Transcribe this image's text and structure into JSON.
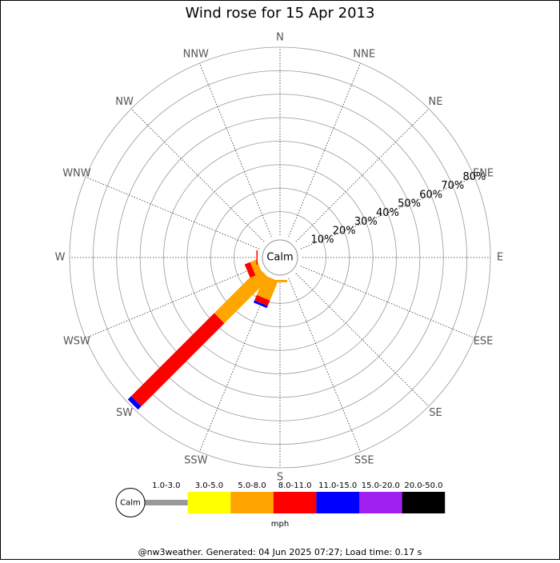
{
  "chart_data": {
    "type": "windrose",
    "title": "Wind rose for 15 Apr 2013",
    "directions": [
      "N",
      "NNE",
      "NE",
      "ENE",
      "E",
      "ESE",
      "SE",
      "SSE",
      "S",
      "SSW",
      "SW",
      "WSW",
      "W",
      "WNW",
      "NW",
      "NNW"
    ],
    "center_label": "Calm",
    "rlim": [
      0,
      80
    ],
    "rticks": [
      {
        "value": 10,
        "label": "10%"
      },
      {
        "value": 20,
        "label": "20%"
      },
      {
        "value": 30,
        "label": "30%"
      },
      {
        "value": 40,
        "label": "40%"
      },
      {
        "value": 50,
        "label": "50%"
      },
      {
        "value": 60,
        "label": "60%"
      },
      {
        "value": 70,
        "label": "70%"
      },
      {
        "value": 80,
        "label": "80%"
      }
    ],
    "series": [
      {
        "name": "1.0-3.0",
        "color": "#999999",
        "values": [
          0,
          0,
          0,
          0,
          0,
          0,
          0,
          0,
          0,
          0,
          0,
          0,
          0,
          0,
          0,
          0
        ]
      },
      {
        "name": "3.0-5.0",
        "color": "#ffff00",
        "values": [
          0,
          0,
          0,
          0,
          0,
          0,
          0,
          0,
          0,
          0,
          0,
          0,
          0,
          0,
          0,
          0
        ]
      },
      {
        "name": "5.0-8.0",
        "color": "#ffa500",
        "values": [
          0,
          0,
          0,
          0,
          0,
          0,
          0,
          0,
          1,
          9,
          27,
          3,
          0,
          0,
          0,
          0
        ]
      },
      {
        "name": "8.0-11.0",
        "color": "#ff0000",
        "values": [
          0,
          0,
          0,
          0,
          0,
          0,
          0,
          0,
          0,
          2.5,
          50,
          2.5,
          0.5,
          0,
          0,
          0
        ]
      },
      {
        "name": "11.0-15.0",
        "color": "#0000ff",
        "values": [
          0,
          0,
          0,
          0,
          0,
          0,
          0,
          0,
          0,
          1,
          2,
          0,
          0,
          0,
          0,
          0
        ]
      },
      {
        "name": "15.0-20.0",
        "color": "#a020f0",
        "values": [
          0,
          0,
          0,
          0,
          0,
          0,
          0,
          0,
          0,
          0,
          0,
          0,
          0,
          0,
          0,
          0
        ]
      },
      {
        "name": "20.0-50.0",
        "color": "#000000",
        "values": [
          0,
          0,
          0,
          0,
          0,
          0,
          0,
          0,
          0,
          0,
          0,
          0,
          0,
          0,
          0,
          0
        ]
      }
    ],
    "unit_label": "mph",
    "footer": "@nw3weather. Generated: 04 Jun 2025 07:27; Load time: 0.17 s"
  }
}
